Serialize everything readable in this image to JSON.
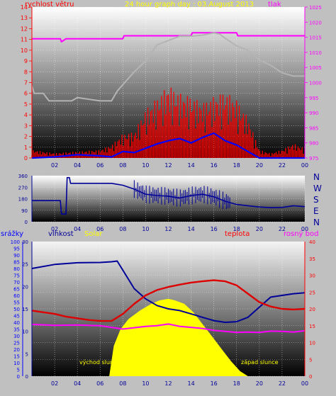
{
  "title": "24 hour graph day : 03.August 2013",
  "colors": {
    "bg": "#c0c0c0",
    "wind": "#ff0000",
    "gust": "#0000ff",
    "pressure": "#ff00ff",
    "pressure_axis": "#ff00ff",
    "winddir": "#000099",
    "humidity": "#000099",
    "temperature": "#dd0000",
    "dew": "#ff00ff",
    "solar": "#ffff00",
    "rain_axis": "#0000ff"
  },
  "chart_data": [
    {
      "id": "wind-pressure",
      "type": "line",
      "labels": {
        "left": "rychlost větru",
        "right": "tlak"
      },
      "x_ticks": [
        "02",
        "04",
        "06",
        "08",
        "10",
        "12",
        "14",
        "16",
        "18",
        "20",
        "22",
        "00"
      ],
      "left_ticks": [
        "0",
        "1",
        "2",
        "3",
        "4",
        "5",
        "6",
        "7",
        "8",
        "9",
        "10",
        "11",
        "12",
        "13",
        "14"
      ],
      "right_ticks": [
        "975",
        "980",
        "985",
        "990",
        "995",
        "1000",
        "1005",
        "1010",
        "1015",
        "1020",
        "1025"
      ],
      "xlim": [
        0,
        24
      ],
      "ylim": [
        0,
        14
      ],
      "y2lim": [
        975,
        1025
      ],
      "series": [
        {
          "role": "pressure",
          "axis": "right",
          "x": [
            0,
            2.5,
            2.6,
            3,
            8,
            8.1,
            14,
            14.1,
            18,
            18.1,
            24
          ],
          "y": [
            1014.5,
            1014.5,
            1013.5,
            1014.5,
            1014.5,
            1015.5,
            1015.5,
            1016.5,
            1016.5,
            1015.5,
            1015.5
          ]
        },
        {
          "role": "temp",
          "axis": "left",
          "x": [
            0,
            0.2,
            1,
            1.5,
            3.5,
            4,
            6,
            7,
            7.5,
            8,
            9,
            10,
            11,
            12,
            13,
            14,
            15,
            16,
            16.5,
            17,
            18,
            19,
            20,
            21,
            22,
            23,
            24
          ],
          "y": [
            6.7,
            6,
            6,
            5.3,
            5.3,
            5.6,
            5.3,
            5.3,
            6.2,
            6.8,
            8,
            9,
            10.5,
            10.9,
            11.3,
            11.3,
            11.4,
            11.6,
            11.5,
            11.1,
            10.4,
            10,
            9.1,
            8.6,
            7.9,
            7.6,
            7.6
          ]
        },
        {
          "role": "wind",
          "axis": "left",
          "x": [
            0,
            2,
            4,
            6,
            7,
            8,
            9,
            10,
            11,
            12,
            13,
            14,
            15,
            16,
            17,
            18,
            19,
            20,
            21,
            22,
            23,
            24
          ],
          "y": [
            0.5,
            0.3,
            0.4,
            0.5,
            0.8,
            1.5,
            1.6,
            3,
            3.7,
            4.5,
            4,
            3.8,
            3.4,
            3.8,
            4.1,
            3.6,
            2.5,
            0.5,
            0.3,
            0.5,
            0.9,
            0.6
          ]
        },
        {
          "role": "gust",
          "axis": "left",
          "x": [
            0,
            2,
            4,
            6,
            7,
            8,
            9,
            10,
            11,
            12,
            13,
            14,
            15,
            16,
            17,
            18,
            19,
            20,
            24
          ],
          "y": [
            0,
            0.1,
            0.3,
            0.2,
            0.1,
            0.6,
            0.5,
            0.9,
            1.3,
            1.6,
            1.8,
            1.4,
            1.9,
            2.3,
            1.6,
            1.2,
            0.6,
            0,
            0
          ]
        }
      ]
    },
    {
      "id": "wind-direction",
      "type": "line",
      "x_ticks": [
        "02",
        "04",
        "06",
        "08",
        "10",
        "12",
        "14",
        "16",
        "18",
        "20",
        "22",
        "00"
      ],
      "left_ticks": [
        "0",
        "90",
        "180",
        "270",
        "360"
      ],
      "compass": [
        "N",
        "W",
        "S",
        "E",
        "N"
      ],
      "xlim": [
        0,
        24
      ],
      "ylim": [
        0,
        360
      ],
      "series": [
        {
          "role": "winddir",
          "x": [
            0,
            2.5,
            2.6,
            3,
            3.1,
            3.3,
            3.4,
            5,
            7,
            8,
            9,
            10,
            11,
            12,
            13,
            14,
            15,
            16,
            17,
            18,
            19,
            20,
            21,
            22,
            23,
            24
          ],
          "y": [
            165,
            165,
            60,
            60,
            345,
            345,
            300,
            300,
            300,
            285,
            255,
            215,
            205,
            200,
            185,
            205,
            215,
            195,
            160,
            135,
            125,
            115,
            110,
            112,
            125,
            118
          ]
        }
      ]
    },
    {
      "id": "humidity-temperature-solar",
      "type": "line",
      "labels": {
        "rain": "srážky",
        "humidity": "vlhkost",
        "solar": "Solar",
        "temperature": "teplota",
        "dew": "rosný bod",
        "sunrise": "východ slunce",
        "sunset": "západ slunce"
      },
      "x_ticks": [
        "02",
        "04",
        "06",
        "08",
        "10",
        "12",
        "14",
        "16",
        "18",
        "20",
        "22",
        "00"
      ],
      "rain_ticks": [
        "0",
        "5",
        "10",
        "15",
        "20",
        "25",
        "30",
        "35",
        "40",
        "45",
        "50",
        "55",
        "60",
        "65",
        "70",
        "75",
        "80",
        "85",
        "90",
        "95",
        "100"
      ],
      "humidity_ticks": [
        "0",
        "5",
        "10",
        "15",
        "20",
        "25",
        "30"
      ],
      "temp_ticks": [
        "0",
        "5",
        "10",
        "15",
        "20",
        "25",
        "30",
        "35",
        "40"
      ],
      "xlim": [
        0,
        24
      ],
      "ylim": [
        0,
        40
      ],
      "series": [
        {
          "role": "humidity",
          "x": [
            0,
            2,
            4,
            6,
            7,
            7.5,
            8,
            9,
            10,
            11,
            12,
            13,
            14,
            15,
            16,
            17,
            18,
            19,
            20,
            21,
            22,
            23,
            24
          ],
          "y": [
            32,
            33.2,
            33.7,
            33.8,
            34,
            34.2,
            31.5,
            26,
            23,
            21,
            20,
            19.5,
            18.5,
            17.5,
            16.5,
            16,
            16.2,
            17.5,
            20.5,
            23.5,
            24,
            24.5,
            24.8
          ]
        },
        {
          "role": "temperature",
          "x": [
            0,
            1,
            2,
            3,
            4,
            5,
            6,
            7,
            8,
            9,
            10,
            11,
            12,
            13,
            14,
            15,
            16,
            17,
            18,
            19,
            20,
            21,
            22,
            23,
            24
          ],
          "y": [
            19.5,
            19,
            18.5,
            17.7,
            17.2,
            16.7,
            16.4,
            16.4,
            18.5,
            21.5,
            24,
            25.6,
            26.5,
            27.2,
            27.8,
            28.2,
            28.5,
            28.2,
            27,
            24.5,
            22,
            20.7,
            20,
            19.8,
            20
          ]
        },
        {
          "role": "dew",
          "x": [
            0,
            2,
            4,
            6,
            7,
            8,
            9,
            10,
            11,
            12,
            13,
            14,
            15,
            16,
            17,
            18,
            19,
            20,
            21,
            22,
            23,
            24
          ],
          "y": [
            15.4,
            15.1,
            15.2,
            15,
            14.5,
            14,
            14.4,
            14.8,
            15,
            15.5,
            14.8,
            14.5,
            14.2,
            13.6,
            13.3,
            13,
            13.1,
            13,
            13.4,
            13.3,
            13.1,
            13.5
          ]
        },
        {
          "role": "solar",
          "x": [
            6.8,
            7.2,
            7.8,
            8.5,
            9.5,
            10.5,
            11.2,
            12,
            12.6,
            13.4,
            14.2,
            15,
            15.8,
            16.7,
            17.5,
            18.3,
            19
          ],
          "y": [
            0,
            9,
            14,
            17,
            19.5,
            21.5,
            22.5,
            23,
            22.5,
            21.5,
            19,
            15.5,
            12,
            8,
            4.5,
            1.5,
            0
          ]
        }
      ]
    }
  ]
}
